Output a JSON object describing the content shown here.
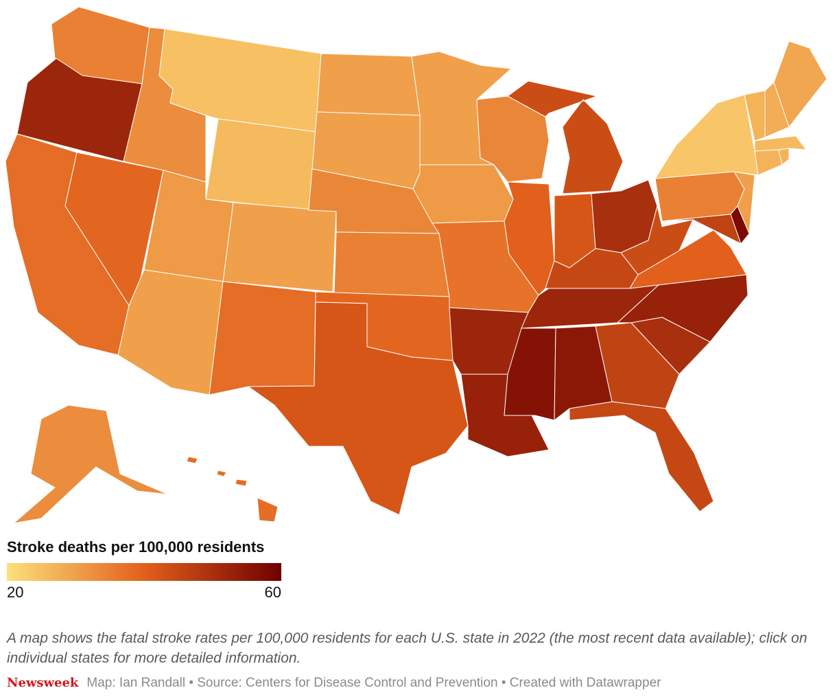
{
  "map": {
    "type": "choropleth",
    "region": "United States",
    "color_scale": {
      "min_color": "#fde07b",
      "mid_color": "#e2601b",
      "max_color": "#6e0000"
    },
    "states": [
      {
        "code": "WA",
        "value": 35
      },
      {
        "code": "OR",
        "value": 52
      },
      {
        "code": "CA",
        "value": 38
      },
      {
        "code": "NV",
        "value": 39
      },
      {
        "code": "ID",
        "value": 33
      },
      {
        "code": "MT",
        "value": 25
      },
      {
        "code": "WY",
        "value": 26
      },
      {
        "code": "UT",
        "value": 31
      },
      {
        "code": "CO",
        "value": 30
      },
      {
        "code": "AZ",
        "value": 30
      },
      {
        "code": "NM",
        "value": 38
      },
      {
        "code": "ND",
        "value": 30
      },
      {
        "code": "SD",
        "value": 30
      },
      {
        "code": "NE",
        "value": 34
      },
      {
        "code": "KS",
        "value": 35
      },
      {
        "code": "OK",
        "value": 39
      },
      {
        "code": "TX",
        "value": 42
      },
      {
        "code": "MN",
        "value": 30
      },
      {
        "code": "IA",
        "value": 31
      },
      {
        "code": "MO",
        "value": 37
      },
      {
        "code": "AR",
        "value": 52
      },
      {
        "code": "LA",
        "value": 53
      },
      {
        "code": "WI",
        "value": 34
      },
      {
        "code": "IL",
        "value": 40
      },
      {
        "code": "MI",
        "value": 44
      },
      {
        "code": "IN",
        "value": 42
      },
      {
        "code": "OH",
        "value": 50
      },
      {
        "code": "KY",
        "value": 45
      },
      {
        "code": "TN",
        "value": 52
      },
      {
        "code": "MS",
        "value": 56
      },
      {
        "code": "AL",
        "value": 55
      },
      {
        "code": "GA",
        "value": 46
      },
      {
        "code": "FL",
        "value": 45
      },
      {
        "code": "SC",
        "value": 50
      },
      {
        "code": "NC",
        "value": 53
      },
      {
        "code": "VA",
        "value": 40
      },
      {
        "code": "WV",
        "value": 44
      },
      {
        "code": "MD",
        "value": 46
      },
      {
        "code": "DE",
        "value": 58
      },
      {
        "code": "PA",
        "value": 35
      },
      {
        "code": "NJ",
        "value": 30
      },
      {
        "code": "NY",
        "value": 24
      },
      {
        "code": "CT",
        "value": 27
      },
      {
        "code": "RI",
        "value": 27
      },
      {
        "code": "MA",
        "value": 26
      },
      {
        "code": "VT",
        "value": 27
      },
      {
        "code": "NH",
        "value": 28
      },
      {
        "code": "ME",
        "value": 29
      },
      {
        "code": "AK",
        "value": 33
      },
      {
        "code": "HI",
        "value": 38
      }
    ]
  },
  "legend": {
    "title": "Stroke deaths per 100,000 residents",
    "min_label": "20",
    "max_label": "60",
    "min": 20,
    "max": 60
  },
  "caption": "A map shows the fatal stroke rates per 100,000 residents for each U.S. state in 2022 (the most recent data available); click on individual states for more detailed information.",
  "footer": {
    "brand": "Newsweek",
    "credits": "Map: Ian Randall • Source: Centers for Disease Control and Prevention • Created with Datawrapper"
  }
}
